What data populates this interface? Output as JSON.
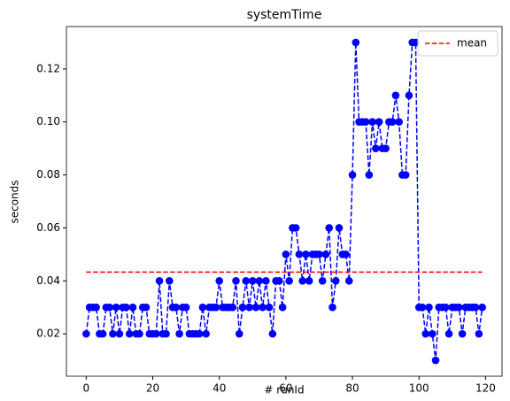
{
  "chart_data": {
    "type": "line",
    "title": "systemTime",
    "xlabel": "# runId",
    "ylabel": "seconds",
    "x": [
      0,
      1,
      2,
      3,
      4,
      5,
      6,
      7,
      8,
      9,
      10,
      11,
      12,
      13,
      14,
      15,
      16,
      17,
      18,
      19,
      20,
      21,
      22,
      23,
      24,
      25,
      26,
      27,
      28,
      29,
      30,
      31,
      32,
      33,
      34,
      35,
      36,
      37,
      38,
      39,
      40,
      41,
      42,
      43,
      44,
      45,
      46,
      47,
      48,
      49,
      50,
      51,
      52,
      53,
      54,
      55,
      56,
      57,
      58,
      59,
      60,
      61,
      62,
      63,
      64,
      65,
      66,
      67,
      68,
      69,
      70,
      71,
      72,
      73,
      74,
      75,
      76,
      77,
      78,
      79,
      80,
      81,
      82,
      83,
      84,
      85,
      86,
      87,
      88,
      89,
      90,
      91,
      92,
      93,
      94,
      95,
      96,
      97,
      98,
      99,
      100,
      101,
      102,
      103,
      104,
      105,
      106,
      107,
      108,
      109,
      110,
      111,
      112,
      113,
      114,
      115,
      116,
      117,
      118,
      119
    ],
    "series": [
      {
        "color": "#0000ff",
        "values": [
          0.02,
          0.03,
          0.03,
          0.03,
          0.02,
          0.02,
          0.03,
          0.03,
          0.02,
          0.03,
          0.02,
          0.03,
          0.03,
          0.02,
          0.03,
          0.02,
          0.02,
          0.03,
          0.03,
          0.02,
          0.02,
          0.02,
          0.04,
          0.02,
          0.02,
          0.04,
          0.03,
          0.03,
          0.02,
          0.03,
          0.03,
          0.02,
          0.02,
          0.02,
          0.02,
          0.03,
          0.02,
          0.03,
          0.03,
          0.03,
          0.04,
          0.03,
          0.03,
          0.03,
          0.03,
          0.04,
          0.02,
          0.03,
          0.04,
          0.03,
          0.04,
          0.03,
          0.04,
          0.03,
          0.04,
          0.03,
          0.02,
          0.04,
          0.04,
          0.03,
          0.05,
          0.04,
          0.06,
          0.06,
          0.05,
          0.04,
          0.05,
          0.04,
          0.05,
          0.05,
          0.05,
          0.04,
          0.05,
          0.06,
          0.03,
          0.04,
          0.06,
          0.05,
          0.05,
          0.04,
          0.08,
          0.13,
          0.1,
          0.1,
          0.1,
          0.08,
          0.1,
          0.09,
          0.1,
          0.09,
          0.09,
          0.1,
          0.1,
          0.11,
          0.1,
          0.08,
          0.08,
          0.11,
          0.13,
          0.13,
          0.03,
          0.03,
          0.02,
          0.03,
          0.02,
          0.01,
          0.03,
          0.03,
          0.03,
          0.02,
          0.03,
          0.03,
          0.03,
          0.02,
          0.03,
          0.03,
          0.03,
          0.03,
          0.02,
          0.03
        ]
      }
    ],
    "hlines": [
      {
        "name": "mean",
        "y": 0.0433,
        "xmin": 0,
        "xmax": 119,
        "color": "#ff0000"
      }
    ],
    "xlim": [
      -5.95,
      124.95
    ],
    "xticks": [
      0,
      20,
      40,
      60,
      80,
      100,
      120
    ],
    "ylim": [
      0.004,
      0.136
    ],
    "yticks": [
      0.02,
      0.04,
      0.06,
      0.08,
      {
        "value": 0.1,
        "label": "0.10"
      },
      0.12
    ],
    "legend": "upper right"
  }
}
